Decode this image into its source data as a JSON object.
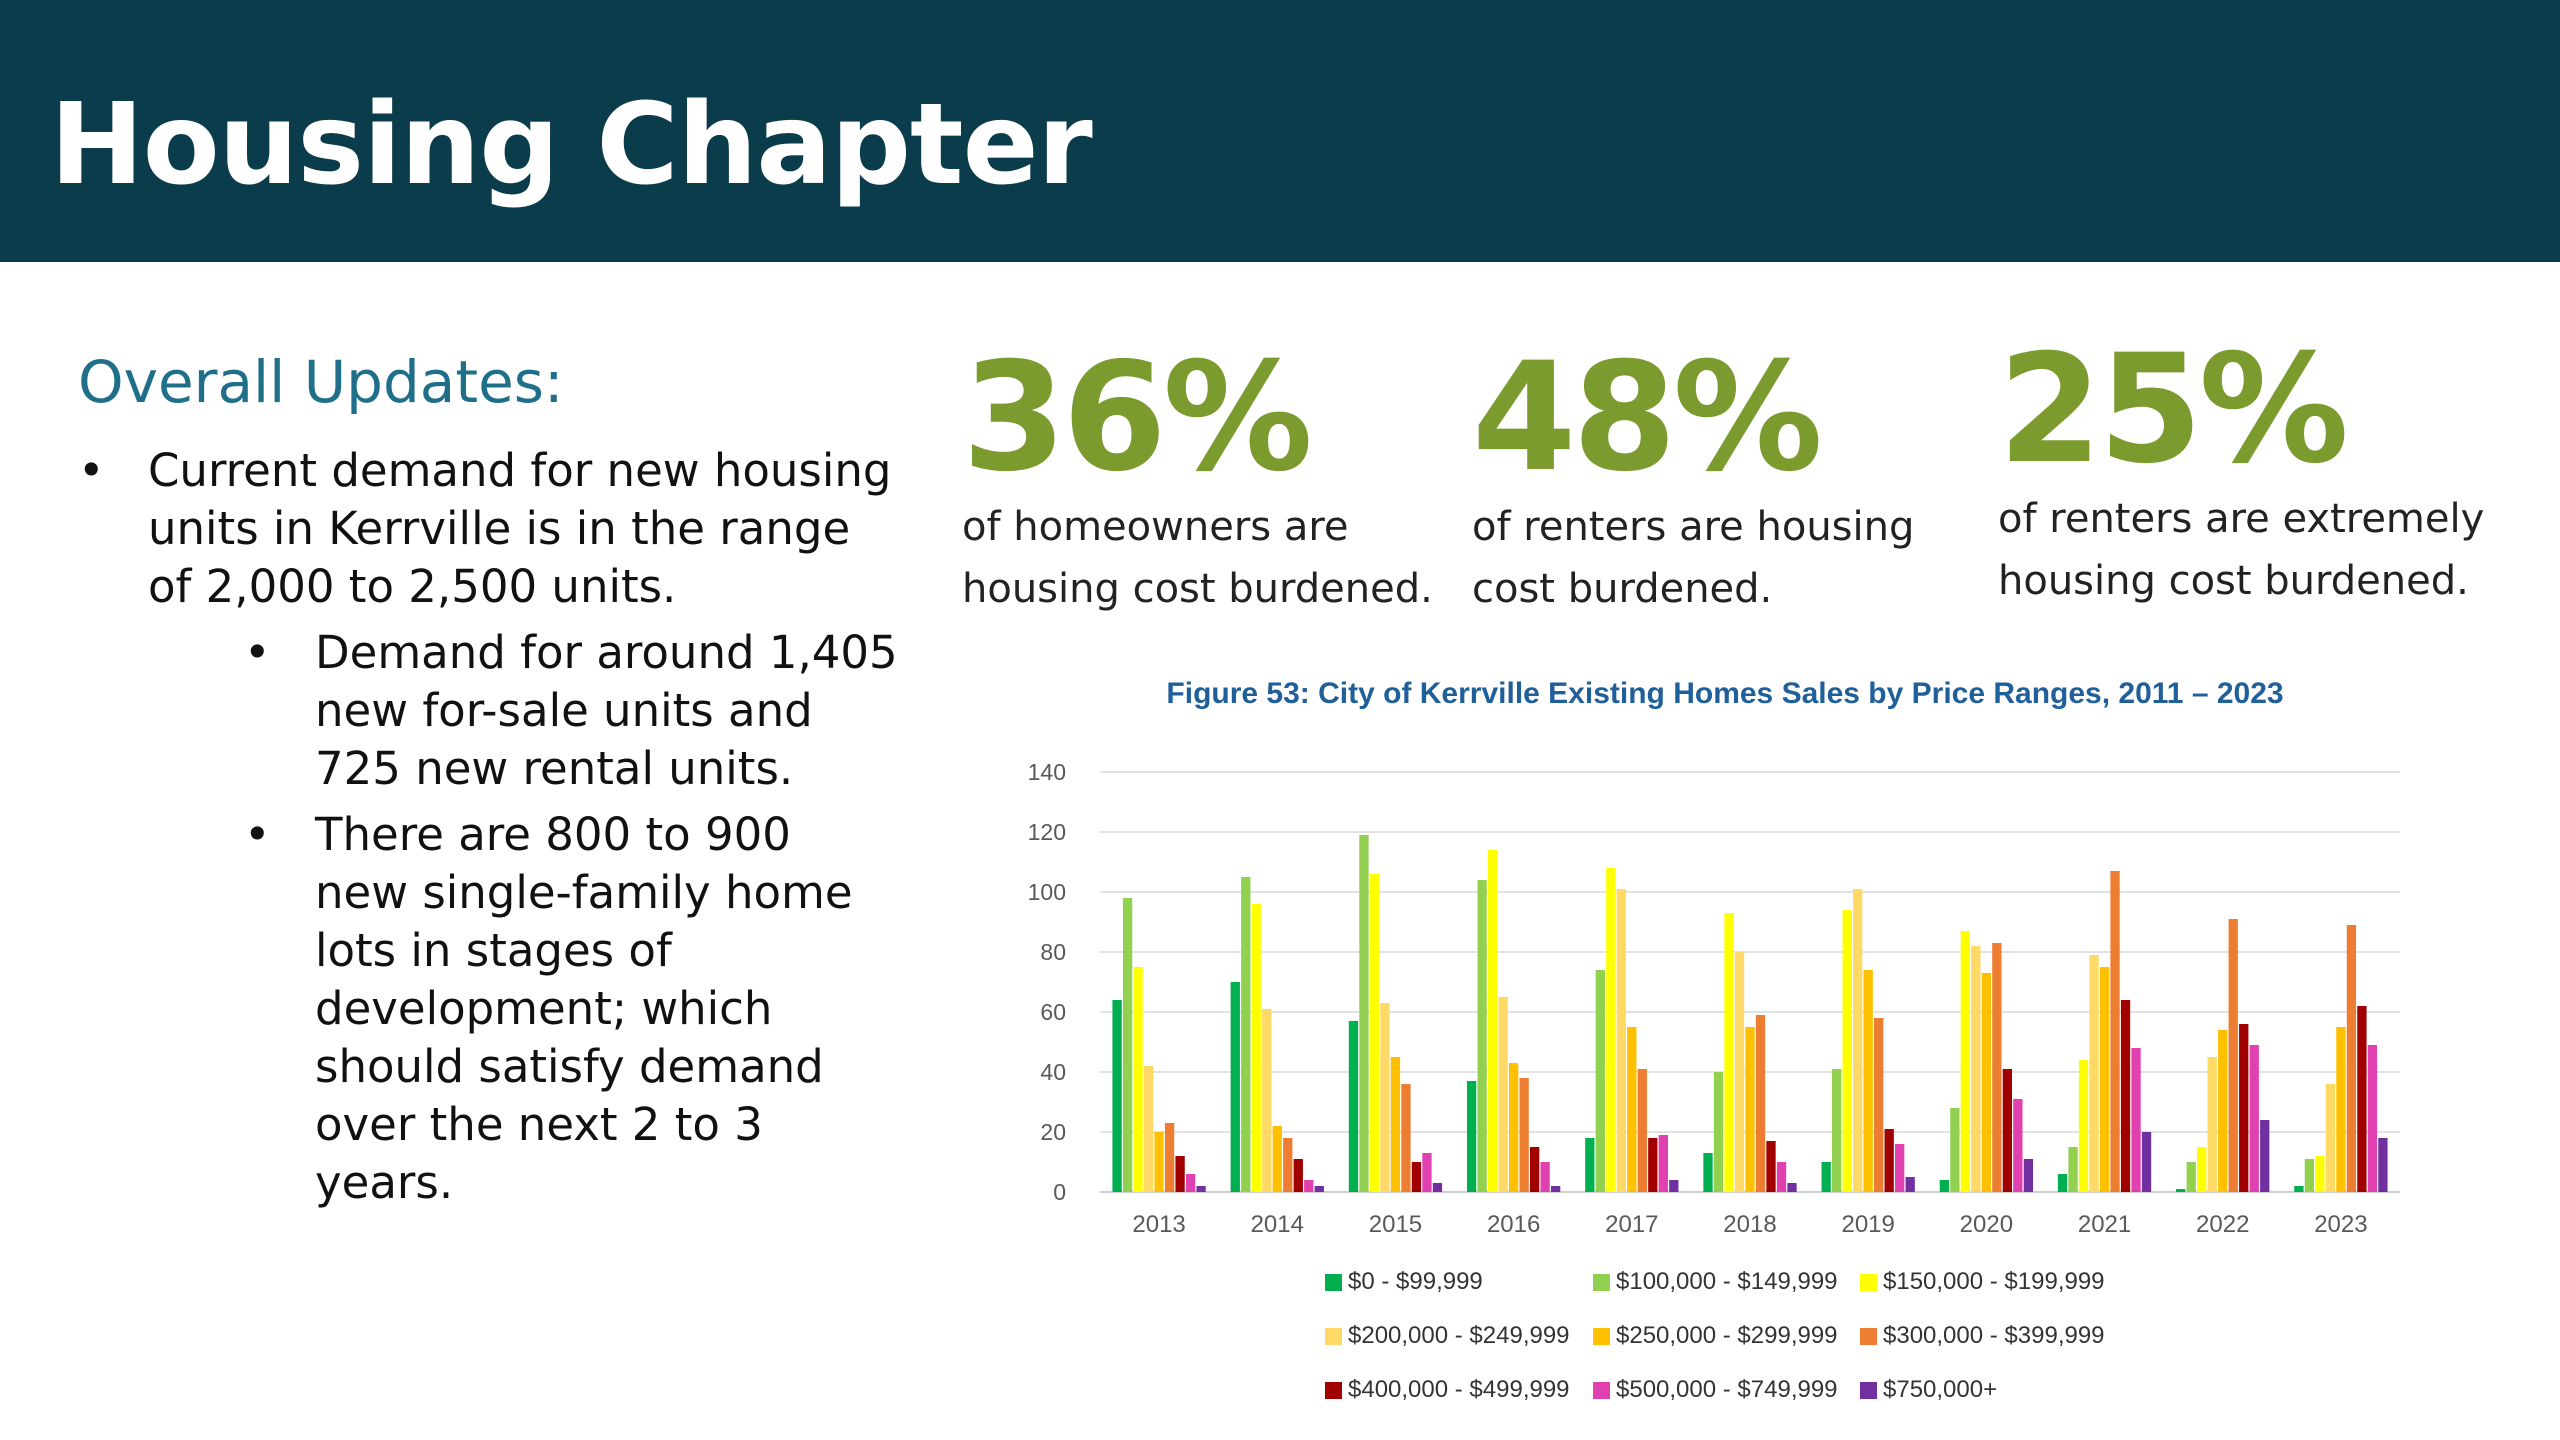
{
  "header": {
    "title": "Housing Chapter"
  },
  "updates": {
    "heading": "Overall Updates:",
    "bullet": "•",
    "item1": "Current demand for new housing units in Kerrville is in the range of 2,000 to 2,500 units.",
    "sub1": "Demand for around 1,405 new for-sale units and 725 new rental units.",
    "sub2": "There are 800 to 900 new single-family home lots in stages of development; which should satisfy demand over the next 2 to 3 years."
  },
  "stats": [
    {
      "value": "36%",
      "caption": "of homeowners are housing cost burdened."
    },
    {
      "value": "48%",
      "caption": "of renters are housing cost burdened."
    },
    {
      "value": "25%",
      "caption": "of renters are extremely housing cost burdened."
    }
  ],
  "chart_data": {
    "type": "bar",
    "title": "Figure 53: City of Kerrville Existing Homes Sales by Price Ranges, 2011 – 2023",
    "xlabel": "",
    "ylabel": "",
    "ylim": [
      0,
      140
    ],
    "yticks": [
      "0",
      "20",
      "40",
      "60",
      "80",
      "100",
      "120",
      "140"
    ],
    "grid": true,
    "legend_position": "bottom",
    "categories": [
      "2013",
      "2014",
      "2015",
      "2016",
      "2017",
      "2018",
      "2019",
      "2020",
      "2021",
      "2022",
      "2023"
    ],
    "series": [
      {
        "name": "$0 - $99,999",
        "color": "#00b050",
        "values": [
          64,
          70,
          57,
          37,
          18,
          13,
          10,
          4,
          6,
          1,
          2
        ]
      },
      {
        "name": "$100,000 - $149,999",
        "color": "#92d050",
        "values": [
          98,
          105,
          119,
          104,
          74,
          40,
          41,
          28,
          15,
          10,
          11
        ]
      },
      {
        "name": "$150,000 - $199,999",
        "color": "#ffff00",
        "values": [
          75,
          96,
          106,
          114,
          108,
          93,
          94,
          87,
          44,
          15,
          12
        ]
      },
      {
        "name": "$200,000 - $249,999",
        "color": "#ffd966",
        "values": [
          42,
          61,
          63,
          65,
          101,
          80,
          101,
          82,
          79,
          45,
          36
        ]
      },
      {
        "name": "$250,000 - $299,999",
        "color": "#ffc000",
        "values": [
          20,
          22,
          45,
          43,
          55,
          55,
          74,
          73,
          75,
          54,
          55
        ]
      },
      {
        "name": "$300,000 - $399,999",
        "color": "#ed7d31",
        "values": [
          23,
          18,
          36,
          38,
          41,
          59,
          58,
          83,
          107,
          91,
          89
        ]
      },
      {
        "name": "$400,000 - $499,999",
        "color": "#a00000",
        "values": [
          12,
          11,
          10,
          15,
          18,
          17,
          21,
          41,
          64,
          56,
          62
        ]
      },
      {
        "name": "$500,000 - $749,999",
        "color": "#e040b0",
        "values": [
          6,
          4,
          13,
          10,
          19,
          10,
          16,
          31,
          48,
          49,
          49
        ]
      },
      {
        "name": "$750,000+",
        "color": "#7030a0",
        "values": [
          2,
          2,
          3,
          2,
          4,
          3,
          5,
          11,
          20,
          24,
          18
        ]
      }
    ]
  }
}
